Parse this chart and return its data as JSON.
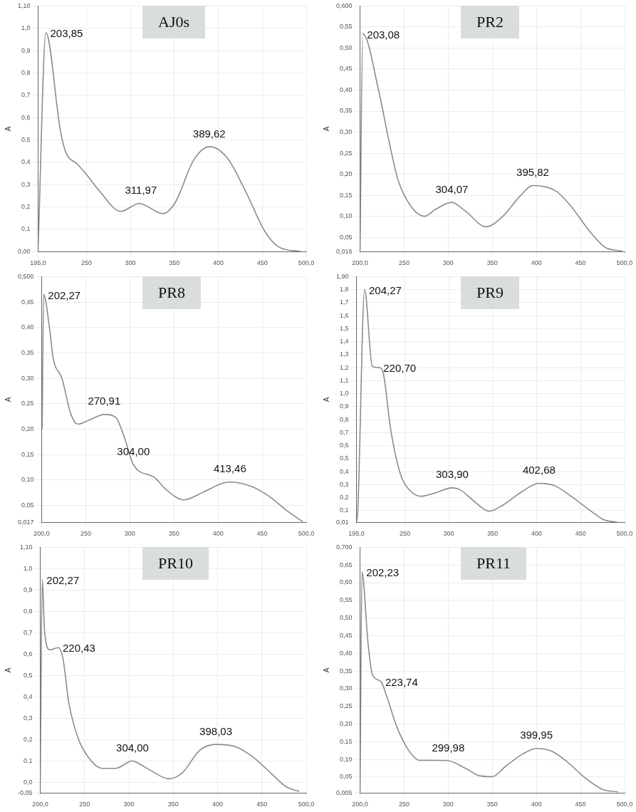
{
  "chart_data": [
    {
      "type": "line",
      "title": "AJ0s",
      "ylabel": "A",
      "color": "#8c8c8c",
      "grid": true,
      "marker": "none",
      "x": [
        195,
        203.85,
        220,
        226,
        240,
        250,
        265,
        289,
        310,
        337,
        351,
        372,
        390,
        410,
        431,
        453,
        469,
        494
      ],
      "values": [
        0.02,
        0.98,
        0.55,
        0.45,
        0.39,
        0.345,
        0.27,
        0.18,
        0.215,
        0.17,
        0.22,
        0.41,
        0.47,
        0.42,
        0.27,
        0.09,
        0.02,
        0.0
      ],
      "xlim": [
        195,
        500
      ],
      "xticks": [
        {
          "value": 195,
          "label": "195,0"
        },
        250,
        300,
        350,
        400,
        450,
        {
          "value": 500,
          "label": "500,0"
        }
      ],
      "ylim": [
        0,
        1.1
      ],
      "yticks": [
        {
          "value": 0,
          "label": "0,00"
        },
        {
          "value": 0.1,
          "label": "0,1"
        },
        {
          "value": 0.2,
          "label": "0,2"
        },
        {
          "value": 0.3,
          "label": "0,3"
        },
        {
          "value": 0.4,
          "label": "0,4"
        },
        {
          "value": 0.5,
          "label": "0,5"
        },
        {
          "value": 0.6,
          "label": "0,6"
        },
        {
          "value": 0.7,
          "label": "0,7"
        },
        {
          "value": 0.8,
          "label": "0,8"
        },
        {
          "value": 0.9,
          "label": "0,9"
        },
        {
          "value": 1,
          "label": "1,0"
        },
        {
          "value": 1.1,
          "label": "1,10"
        }
      ],
      "annotations": [
        {
          "text": "203,85",
          "x": 203.85,
          "y": 0.98
        },
        {
          "text": "311,97",
          "x": 311.97,
          "y": 0.215
        },
        {
          "text": "389,62",
          "x": 389.62,
          "y": 0.47
        }
      ]
    },
    {
      "type": "line",
      "title": "PR2",
      "ylabel": "A",
      "color": "#8c8c8c",
      "grid": true,
      "marker": "none",
      "x": [
        200,
        203.08,
        221.6,
        232,
        243,
        259,
        273,
        286,
        304.07,
        319,
        343,
        362,
        381,
        395.82,
        422,
        438,
        462,
        478,
        497
      ],
      "values": [
        0.02,
        0.534,
        0.394,
        0.287,
        0.187,
        0.12,
        0.1,
        0.117,
        0.133,
        0.113,
        0.075,
        0.1,
        0.147,
        0.173,
        0.16,
        0.127,
        0.06,
        0.026,
        0.017
      ],
      "xlim": [
        200,
        500
      ],
      "xticks": [
        {
          "value": 200,
          "label": "200,0"
        },
        250,
        300,
        350,
        400,
        450,
        {
          "value": 500,
          "label": "500,0"
        }
      ],
      "ylim": [
        0.016,
        0.6
      ],
      "yticks": [
        {
          "value": 0.016,
          "label": "0,016"
        },
        {
          "value": 0.05,
          "label": "0,05"
        },
        {
          "value": 0.1,
          "label": "0,10"
        },
        {
          "value": 0.15,
          "label": "0,15"
        },
        {
          "value": 0.2,
          "label": "0,20"
        },
        {
          "value": 0.25,
          "label": "0,25"
        },
        {
          "value": 0.3,
          "label": "0,30"
        },
        {
          "value": 0.35,
          "label": "0,35"
        },
        {
          "value": 0.4,
          "label": "0,40"
        },
        {
          "value": 0.45,
          "label": "0,45"
        },
        {
          "value": 0.5,
          "label": "0,50"
        },
        {
          "value": 0.55,
          "label": "0,55"
        },
        {
          "value": 0.6,
          "label": "0,600"
        }
      ],
      "annotations": [
        {
          "text": "203,08",
          "x": 203.08,
          "y": 0.534
        },
        {
          "text": "304,07",
          "x": 304.07,
          "y": 0.133
        },
        {
          "text": "395,82",
          "x": 395.82,
          "y": 0.173
        }
      ]
    },
    {
      "type": "line",
      "title": "PR8",
      "ylabel": "A",
      "color": "#8c8c8c",
      "grid": true,
      "marker": "none",
      "x": [
        200.5,
        202.27,
        209,
        213,
        223,
        233,
        241,
        254,
        270.91,
        284,
        294,
        304,
        328,
        340,
        361,
        384,
        404,
        413.46,
        437,
        458,
        478,
        496
      ],
      "values": [
        0.2,
        0.465,
        0.397,
        0.34,
        0.3,
        0.23,
        0.21,
        0.218,
        0.229,
        0.223,
        0.183,
        0.13,
        0.105,
        0.083,
        0.061,
        0.077,
        0.093,
        0.096,
        0.088,
        0.068,
        0.04,
        0.018
      ],
      "xlim": [
        200,
        500
      ],
      "xticks": [
        {
          "value": 200,
          "label": "200,0"
        },
        250,
        300,
        350,
        400,
        450,
        {
          "value": 500,
          "label": "500,0"
        }
      ],
      "ylim": [
        0.017,
        0.5
      ],
      "yticks": [
        {
          "value": 0.017,
          "label": "0,017"
        },
        {
          "value": 0.05,
          "label": "0,05"
        },
        {
          "value": 0.1,
          "label": "0,10"
        },
        {
          "value": 0.15,
          "label": "0,15"
        },
        {
          "value": 0.2,
          "label": "0,20"
        },
        {
          "value": 0.25,
          "label": "0,25"
        },
        {
          "value": 0.3,
          "label": "0,30"
        },
        {
          "value": 0.35,
          "label": "0,35"
        },
        {
          "value": 0.4,
          "label": "0,40"
        },
        {
          "value": 0.45,
          "label": "0,45"
        },
        {
          "value": 0.5,
          "label": "0,500"
        }
      ],
      "annotations": [
        {
          "text": "202,27",
          "x": 202.27,
          "y": 0.465
        },
        {
          "text": "270,91",
          "x": 270.91,
          "y": 0.229
        },
        {
          "text": "304,00",
          "x": 304,
          "y": 0.13
        },
        {
          "text": "413,46",
          "x": 413.46,
          "y": 0.096
        }
      ]
    },
    {
      "type": "line",
      "title": "PR9",
      "ylabel": "A",
      "color": "#8c8c8c",
      "grid": true,
      "marker": "none",
      "x": [
        195,
        196.5,
        204.27,
        213,
        220.7,
        225,
        234,
        245,
        255,
        268,
        282,
        303.9,
        313,
        329,
        346,
        361,
        382,
        402.68,
        421,
        439,
        461,
        476,
        492
      ],
      "values": [
        0.01,
        0.1,
        1.8,
        1.21,
        1.2,
        1.17,
        0.72,
        0.38,
        0.26,
        0.21,
        0.23,
        0.275,
        0.26,
        0.17,
        0.095,
        0.14,
        0.24,
        0.31,
        0.29,
        0.21,
        0.1,
        0.03,
        0.01
      ],
      "xlim": [
        195,
        500
      ],
      "xticks": [
        {
          "value": 195,
          "label": "195,0"
        },
        250,
        300,
        350,
        400,
        450,
        {
          "value": 500,
          "label": "500,0"
        }
      ],
      "ylim": [
        0.01,
        1.9
      ],
      "yticks": [
        {
          "value": 0.01,
          "label": "0,01"
        },
        {
          "value": 0.1,
          "label": "0,1"
        },
        {
          "value": 0.2,
          "label": "0,2"
        },
        {
          "value": 0.3,
          "label": "0,3"
        },
        {
          "value": 0.4,
          "label": "0,4"
        },
        {
          "value": 0.5,
          "label": "0,5"
        },
        {
          "value": 0.6,
          "label": "0,6"
        },
        {
          "value": 0.7,
          "label": "0,7"
        },
        {
          "value": 0.8,
          "label": "0,8"
        },
        {
          "value": 0.9,
          "label": "0,9"
        },
        {
          "value": 1,
          "label": "1,0"
        },
        {
          "value": 1.1,
          "label": "1,1"
        },
        {
          "value": 1.2,
          "label": "1,2"
        },
        {
          "value": 1.3,
          "label": "1,3"
        },
        {
          "value": 1.4,
          "label": "1,4"
        },
        {
          "value": 1.5,
          "label": "1,5"
        },
        {
          "value": 1.6,
          "label": "1,6"
        },
        {
          "value": 1.7,
          "label": "1,7"
        },
        {
          "value": 1.8,
          "label": "1,8"
        },
        {
          "value": 1.9,
          "label": "1,90"
        }
      ],
      "annotations": [
        {
          "text": "204,27",
          "x": 204.27,
          "y": 1.8
        },
        {
          "text": "220,70",
          "x": 220.7,
          "y": 1.2
        },
        {
          "text": "303,90",
          "x": 303.9,
          "y": 0.275
        },
        {
          "text": "402,68",
          "x": 402.68,
          "y": 0.31
        }
      ]
    },
    {
      "type": "line",
      "title": "PR10",
      "ylabel": "A",
      "color": "#8c8c8c",
      "grid": true,
      "marker": "none",
      "x": [
        200,
        202.27,
        205,
        211,
        220.43,
        226,
        232,
        242,
        252,
        270,
        285,
        304,
        310,
        325,
        345,
        360,
        380,
        398.03,
        420,
        440,
        460,
        477,
        492
      ],
      "values": [
        0,
        0.95,
        0.7,
        0.62,
        0.63,
        0.57,
        0.376,
        0.215,
        0.13,
        0.065,
        0.065,
        0.1,
        0.09,
        0.054,
        0.016,
        0.043,
        0.15,
        0.177,
        0.167,
        0.118,
        0.043,
        -0.02,
        -0.043
      ],
      "xlim": [
        200,
        500
      ],
      "xticks": [
        {
          "value": 200,
          "label": "200,0"
        },
        250,
        300,
        350,
        400,
        450,
        {
          "value": 500,
          "label": "500,0"
        }
      ],
      "ylim": [
        -0.05,
        1.1
      ],
      "yticks": [
        {
          "value": -0.05,
          "label": "-0,05"
        },
        {
          "value": 0,
          "label": "0,0"
        },
        {
          "value": 0.1,
          "label": "0,1"
        },
        {
          "value": 0.2,
          "label": "0,2"
        },
        {
          "value": 0.3,
          "label": "0,3"
        },
        {
          "value": 0.4,
          "label": "0,4"
        },
        {
          "value": 0.5,
          "label": "0,5"
        },
        {
          "value": 0.6,
          "label": "0,6"
        },
        {
          "value": 0.7,
          "label": "0,7"
        },
        {
          "value": 0.8,
          "label": "0,8"
        },
        {
          "value": 0.9,
          "label": "0,9"
        },
        {
          "value": 1,
          "label": "1,0"
        },
        {
          "value": 1.1,
          "label": "1,10"
        }
      ],
      "annotations": [
        {
          "text": "202,27",
          "x": 202.27,
          "y": 0.95
        },
        {
          "text": "220,43",
          "x": 220.43,
          "y": 0.63
        },
        {
          "text": "304,00",
          "x": 304,
          "y": 0.1
        },
        {
          "text": "398,03",
          "x": 398.03,
          "y": 0.177
        }
      ]
    },
    {
      "type": "line",
      "title": "PR11",
      "ylabel": "A",
      "color": "#8c8c8c",
      "grid": true,
      "marker": "none",
      "x": [
        200,
        202.23,
        209,
        214,
        223.74,
        230,
        242,
        255,
        267.5,
        285,
        299.98,
        320,
        335,
        350,
        365,
        385,
        399.95,
        417.5,
        435,
        455,
        475,
        492.5
      ],
      "values": [
        0.01,
        0.63,
        0.43,
        0.34,
        0.32,
        0.28,
        0.19,
        0.126,
        0.097,
        0.097,
        0.096,
        0.074,
        0.054,
        0.051,
        0.08,
        0.116,
        0.131,
        0.123,
        0.093,
        0.048,
        0.015,
        0.008
      ],
      "xlim": [
        200,
        500
      ],
      "xticks": [
        {
          "value": 200,
          "label": "200,0"
        },
        250,
        300,
        350,
        400,
        450,
        {
          "value": 500,
          "label": "500,0"
        }
      ],
      "ylim": [
        0.005,
        0.7
      ],
      "yticks": [
        {
          "value": 0.005,
          "label": "0,005"
        },
        {
          "value": 0.05,
          "label": "0,05"
        },
        {
          "value": 0.1,
          "label": "0,10"
        },
        {
          "value": 0.15,
          "label": "0,15"
        },
        {
          "value": 0.2,
          "label": "0,20"
        },
        {
          "value": 0.25,
          "label": "0,25"
        },
        {
          "value": 0.3,
          "label": "0,30"
        },
        {
          "value": 0.35,
          "label": "0,35"
        },
        {
          "value": 0.4,
          "label": "0,40"
        },
        {
          "value": 0.45,
          "label": "0,45"
        },
        {
          "value": 0.5,
          "label": "0,50"
        },
        {
          "value": 0.55,
          "label": "0,55"
        },
        {
          "value": 0.6,
          "label": "0,60"
        },
        {
          "value": 0.65,
          "label": "0,65"
        },
        {
          "value": 0.7,
          "label": "0,700"
        }
      ],
      "annotations": [
        {
          "text": "202,23",
          "x": 202.23,
          "y": 0.63
        },
        {
          "text": "223,74",
          "x": 223.74,
          "y": 0.32
        },
        {
          "text": "299,98",
          "x": 299.98,
          "y": 0.096
        },
        {
          "text": "399,95",
          "x": 399.95,
          "y": 0.131
        }
      ]
    }
  ]
}
